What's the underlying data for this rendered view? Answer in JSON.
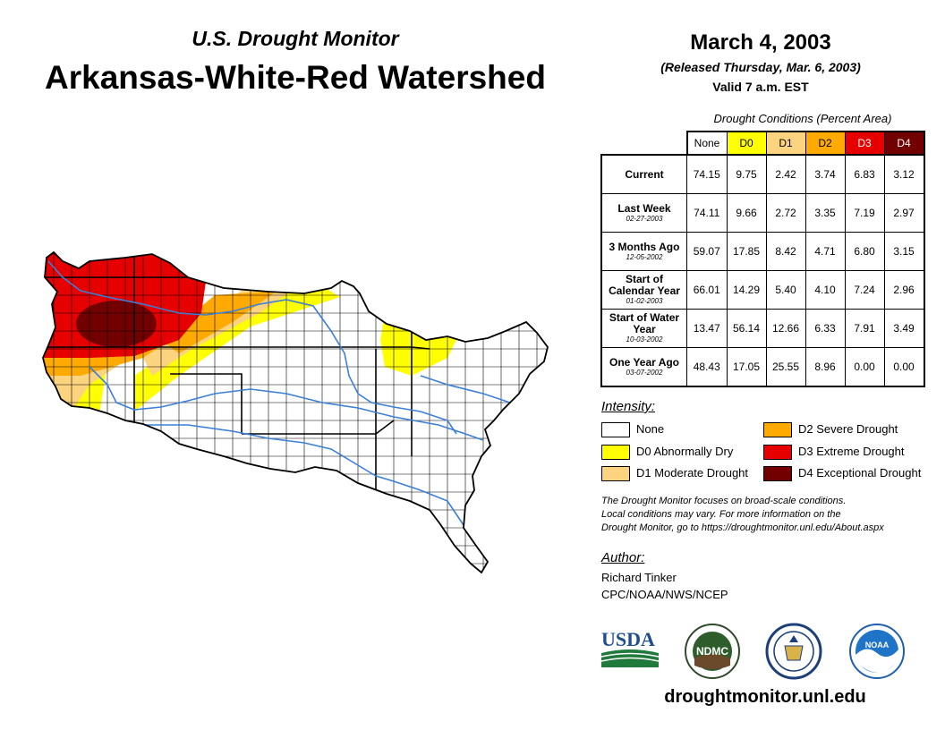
{
  "header": {
    "subtitle": "U.S. Drought Monitor",
    "title": "Arkansas-White-Red Watershed",
    "date": "March 4, 2003",
    "released": "(Released Thursday, Mar. 6, 2003)",
    "valid": "Valid 7 a.m. EST"
  },
  "table": {
    "caption": "Drought Conditions (Percent Area)",
    "columns": [
      "None",
      "D0",
      "D1",
      "D2",
      "D3",
      "D4"
    ],
    "column_colors": [
      "#ffffff",
      "#ffff00",
      "#fcd37f",
      "#ffaa00",
      "#e60000",
      "#730000"
    ],
    "rows": [
      {
        "label": "Current",
        "date": "",
        "values": [
          "74.15",
          "9.75",
          "2.42",
          "3.74",
          "6.83",
          "3.12"
        ]
      },
      {
        "label": "Last Week",
        "date": "02-27-2003",
        "values": [
          "74.11",
          "9.66",
          "2.72",
          "3.35",
          "7.19",
          "2.97"
        ]
      },
      {
        "label": "3 Months Ago",
        "date": "12-05-2002",
        "values": [
          "59.07",
          "17.85",
          "8.42",
          "4.71",
          "6.80",
          "3.15"
        ]
      },
      {
        "label": "Start of Calendar Year",
        "date": "01-02-2003",
        "values": [
          "66.01",
          "14.29",
          "5.40",
          "4.10",
          "7.24",
          "2.96"
        ]
      },
      {
        "label": "Start of Water Year",
        "date": "10-03-2002",
        "values": [
          "13.47",
          "56.14",
          "12.66",
          "6.33",
          "7.91",
          "3.49"
        ]
      },
      {
        "label": "One Year Ago",
        "date": "03-07-2002",
        "values": [
          "48.43",
          "17.05",
          "25.55",
          "8.96",
          "0.00",
          "0.00"
        ]
      }
    ]
  },
  "legend": {
    "title": "Intensity:",
    "items": [
      {
        "label": "None",
        "color": "#ffffff"
      },
      {
        "label": "D0 Abnormally Dry",
        "color": "#ffff00"
      },
      {
        "label": "D1 Moderate Drought",
        "color": "#fcd37f"
      },
      {
        "label": "D2 Severe Drought",
        "color": "#ffaa00"
      },
      {
        "label": "D3 Extreme Drought",
        "color": "#e60000"
      },
      {
        "label": "D4 Exceptional Drought",
        "color": "#730000"
      }
    ]
  },
  "note": {
    "line1": "The Drought Monitor focuses on broad-scale conditions.",
    "line2": "Local conditions may vary. For more information on the",
    "line3": "Drought Monitor, go to https://droughtmonitor.unl.edu/About.aspx"
  },
  "author": {
    "label": "Author:",
    "name": "Richard Tinker",
    "org": "CPC/NOAA/NWS/NCEP"
  },
  "logos": {
    "usda": "USDA",
    "ndmc": "NDMC",
    "noaa": "NOAA"
  },
  "footer": {
    "site": "droughtmonitor.unl.edu"
  }
}
